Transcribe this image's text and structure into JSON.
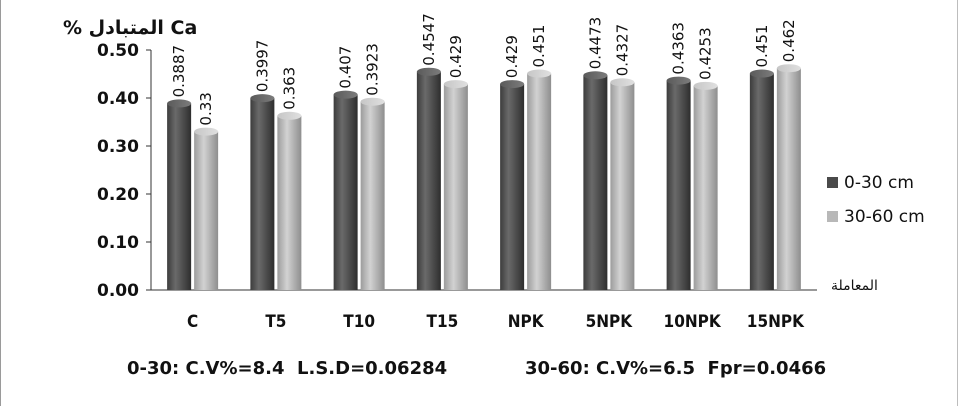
{
  "chart_data": {
    "type": "bar",
    "title": "",
    "ylabel": "% المتبادل Ca",
    "xlabel": "المعاملة",
    "categories": [
      "C",
      "T5",
      "T10",
      "T15",
      "NPK",
      "5NPK",
      "10NPK",
      "15NPK"
    ],
    "series": [
      {
        "name": "0-30 cm",
        "color": "#555555",
        "values": [
          0.3887,
          0.3997,
          0.407,
          0.4547,
          0.429,
          0.4473,
          0.4363,
          0.451
        ],
        "labels": [
          "0.3887",
          "0.3997",
          "0.407",
          "0.4547",
          "0.429",
          "0.4473",
          "0.4363",
          "0.451"
        ]
      },
      {
        "name": "30-60 cm",
        "color": "#b8b8b8",
        "values": [
          0.33,
          0.363,
          0.3923,
          0.429,
          0.451,
          0.4327,
          0.4253,
          0.462
        ],
        "labels": [
          "0.33",
          "0.363",
          "0.3923",
          "0.429",
          "0.451",
          "0.4327",
          "0.4253",
          "0.462"
        ]
      }
    ],
    "ylim": [
      0,
      0.5
    ],
    "yticks": [
      "0.00",
      "0.10",
      "0.20",
      "0.30",
      "0.40",
      "0.50"
    ],
    "grid": false,
    "legend_position": "right",
    "legend": [
      "0-30 cm",
      "30-60 cm"
    ],
    "annotations": {
      "stats_left": "0-30: C.V%=8.4  L.S.D=0.06284",
      "stats_right": "30-60: C.V%=6.5  Fpr=0.0466"
    }
  }
}
